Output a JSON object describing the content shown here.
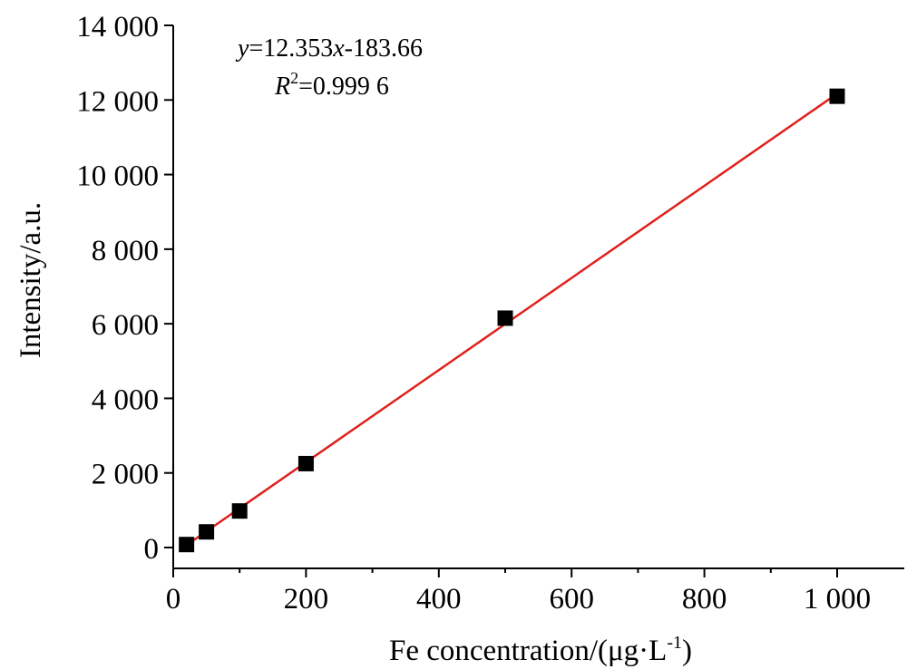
{
  "chart_data": {
    "type": "scatter",
    "title": "",
    "xlabel": "Fe concentration/(μg·L",
    "xlabel_sup": "-1",
    "xlabel_close": ")",
    "ylabel": "Intensity/a.u.",
    "xlim": [
      0,
      1100
    ],
    "ylim": [
      -500,
      14000
    ],
    "xticks": [
      0,
      200,
      400,
      600,
      800,
      1000
    ],
    "xtick_labels": [
      "0",
      "200",
      "400",
      "600",
      "800",
      "1 000"
    ],
    "yticks": [
      0,
      2000,
      4000,
      6000,
      8000,
      10000,
      12000,
      14000
    ],
    "ytick_labels": [
      "0",
      "2 000",
      "4 000",
      "6 000",
      "8 000",
      "10 000",
      "12 000",
      "14 000"
    ],
    "grid": false,
    "series": [
      {
        "marker": "square",
        "color": "#000000",
        "x": [
          20,
          50,
          100,
          200,
          500,
          1000
        ],
        "y": [
          80,
          420,
          980,
          2250,
          6150,
          12100
        ]
      }
    ],
    "fit_line": {
      "color": "#e0201c",
      "slope": 12.353,
      "intercept": -183.66,
      "x_range": [
        20,
        1000
      ]
    },
    "annotation": {
      "eq_var_y": "y",
      "eq_mid": "=12.353",
      "eq_var_x": "x",
      "eq_end": "-183.66",
      "r2_var": "R",
      "r2_sup": "2",
      "r2_value": "=0.999 6"
    }
  }
}
